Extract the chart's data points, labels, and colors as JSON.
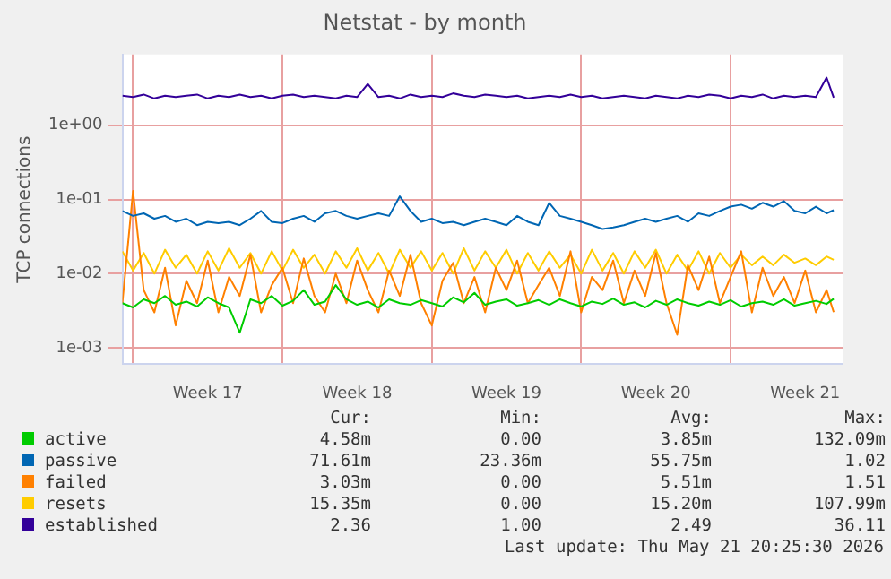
{
  "chart_data": {
    "type": "line",
    "title": "Netstat - by month",
    "ylabel": "TCP connections",
    "log": true,
    "grid": true,
    "legend": "bottom",
    "xlim": [
      "2026-04-18T12:00",
      "2026-05-22T06:00"
    ],
    "xticks": [
      {
        "value": "2026-04-19T00:00",
        "label": null
      },
      {
        "value": "2026-04-22T12:00",
        "label": "Week 17"
      },
      {
        "value": "2026-04-26T00:00",
        "label": null
      },
      {
        "value": "2026-04-29T12:00",
        "label": "Week 18"
      },
      {
        "value": "2026-05-03T00:00",
        "label": null
      },
      {
        "value": "2026-05-06T12:00",
        "label": "Week 19"
      },
      {
        "value": "2026-05-10T00:00",
        "label": null
      },
      {
        "value": "2026-05-13T12:00",
        "label": "Week 20"
      },
      {
        "value": "2026-05-17T00:00",
        "label": null
      },
      {
        "value": "2026-05-20T12:00",
        "label": "Week 21"
      }
    ],
    "ylim": [
      0.0006,
      9
    ],
    "yticks": [
      {
        "value": 0.001,
        "label": "1e-03"
      },
      {
        "value": 0.01,
        "label": "1e-02"
      },
      {
        "value": 0.1,
        "label": "1e-01"
      },
      {
        "value": 1,
        "label": "1e+00"
      }
    ],
    "x": [
      "2026-04-18T12:00",
      "2026-04-19T00:00",
      "2026-04-19T12:00",
      "2026-04-20T00:00",
      "2026-04-20T12:00",
      "2026-04-21T00:00",
      "2026-04-21T12:00",
      "2026-04-22T00:00",
      "2026-04-22T12:00",
      "2026-04-23T00:00",
      "2026-04-23T12:00",
      "2026-04-24T00:00",
      "2026-04-24T12:00",
      "2026-04-25T00:00",
      "2026-04-25T12:00",
      "2026-04-26T00:00",
      "2026-04-26T12:00",
      "2026-04-27T00:00",
      "2026-04-27T12:00",
      "2026-04-28T00:00",
      "2026-04-28T12:00",
      "2026-04-29T00:00",
      "2026-04-29T12:00",
      "2026-04-30T00:00",
      "2026-04-30T12:00",
      "2026-05-01T00:00",
      "2026-05-01T12:00",
      "2026-05-02T00:00",
      "2026-05-02T12:00",
      "2026-05-03T00:00",
      "2026-05-03T12:00",
      "2026-05-04T00:00",
      "2026-05-04T12:00",
      "2026-05-05T00:00",
      "2026-05-05T12:00",
      "2026-05-06T00:00",
      "2026-05-06T12:00",
      "2026-05-07T00:00",
      "2026-05-07T12:00",
      "2026-05-08T00:00",
      "2026-05-08T12:00",
      "2026-05-09T00:00",
      "2026-05-09T12:00",
      "2026-05-10T00:00",
      "2026-05-10T12:00",
      "2026-05-11T00:00",
      "2026-05-11T12:00",
      "2026-05-12T00:00",
      "2026-05-12T12:00",
      "2026-05-13T00:00",
      "2026-05-13T12:00",
      "2026-05-14T00:00",
      "2026-05-14T12:00",
      "2026-05-15T00:00",
      "2026-05-15T12:00",
      "2026-05-16T00:00",
      "2026-05-16T12:00",
      "2026-05-17T00:00",
      "2026-05-17T12:00",
      "2026-05-18T00:00",
      "2026-05-18T12:00",
      "2026-05-19T00:00",
      "2026-05-19T12:00",
      "2026-05-20T00:00",
      "2026-05-20T12:00",
      "2026-05-21T00:00",
      "2026-05-21T12:00",
      "2026-05-21T20:00"
    ],
    "series": [
      {
        "name": "active",
        "color": "#00cc00",
        "values": [
          0.004,
          0.0035,
          0.0045,
          0.004,
          0.005,
          0.0038,
          0.0042,
          0.0036,
          0.0048,
          0.004,
          0.0035,
          0.0016,
          0.0045,
          0.004,
          0.005,
          0.0037,
          0.0043,
          0.006,
          0.0038,
          0.0042,
          0.007,
          0.0045,
          0.0038,
          0.0042,
          0.0035,
          0.0045,
          0.004,
          0.0038,
          0.0044,
          0.004,
          0.0036,
          0.0048,
          0.0041,
          0.0055,
          0.0038,
          0.0042,
          0.0045,
          0.0037,
          0.004,
          0.0044,
          0.0038,
          0.0045,
          0.004,
          0.0036,
          0.0042,
          0.0039,
          0.0046,
          0.0038,
          0.0041,
          0.0035,
          0.0043,
          0.0038,
          0.0045,
          0.004,
          0.0037,
          0.0042,
          0.0038,
          0.0044,
          0.0036,
          0.004,
          0.0042,
          0.0038,
          0.0045,
          0.0037,
          0.004,
          0.0043,
          0.0039,
          0.00458
        ]
      },
      {
        "name": "passive",
        "color": "#0066b3",
        "values": [
          0.07,
          0.06,
          0.065,
          0.055,
          0.06,
          0.05,
          0.055,
          0.045,
          0.05,
          0.048,
          0.05,
          0.045,
          0.055,
          0.07,
          0.05,
          0.048,
          0.055,
          0.06,
          0.05,
          0.065,
          0.07,
          0.06,
          0.055,
          0.06,
          0.065,
          0.06,
          0.11,
          0.07,
          0.05,
          0.055,
          0.048,
          0.05,
          0.045,
          0.05,
          0.055,
          0.05,
          0.045,
          0.06,
          0.05,
          0.045,
          0.09,
          0.06,
          0.055,
          0.05,
          0.045,
          0.04,
          0.042,
          0.045,
          0.05,
          0.055,
          0.05,
          0.055,
          0.06,
          0.05,
          0.065,
          0.06,
          0.07,
          0.08,
          0.085,
          0.075,
          0.09,
          0.08,
          0.095,
          0.07,
          0.065,
          0.08,
          0.065,
          0.0716
        ]
      },
      {
        "name": "failed",
        "color": "#ff8000",
        "values": [
          0.004,
          0.13,
          0.006,
          0.003,
          0.012,
          0.002,
          0.008,
          0.004,
          0.015,
          0.003,
          0.009,
          0.005,
          0.018,
          0.003,
          0.007,
          0.012,
          0.004,
          0.016,
          0.005,
          0.003,
          0.01,
          0.004,
          0.015,
          0.006,
          0.003,
          0.011,
          0.005,
          0.018,
          0.004,
          0.002,
          0.008,
          0.014,
          0.004,
          0.009,
          0.003,
          0.012,
          0.006,
          0.015,
          0.004,
          0.007,
          0.012,
          0.005,
          0.02,
          0.003,
          0.009,
          0.006,
          0.015,
          0.004,
          0.011,
          0.005,
          0.019,
          0.004,
          0.0015,
          0.013,
          0.006,
          0.017,
          0.004,
          0.009,
          0.02,
          0.003,
          0.012,
          0.005,
          0.009,
          0.004,
          0.011,
          0.003,
          0.006,
          0.00303
        ]
      },
      {
        "name": "resets",
        "color": "#ffcc00",
        "values": [
          0.02,
          0.011,
          0.019,
          0.01,
          0.021,
          0.012,
          0.018,
          0.01,
          0.02,
          0.011,
          0.022,
          0.012,
          0.019,
          0.01,
          0.02,
          0.011,
          0.021,
          0.012,
          0.018,
          0.01,
          0.02,
          0.012,
          0.022,
          0.011,
          0.019,
          0.01,
          0.021,
          0.012,
          0.02,
          0.011,
          0.019,
          0.01,
          0.022,
          0.011,
          0.02,
          0.012,
          0.021,
          0.01,
          0.019,
          0.011,
          0.02,
          0.012,
          0.018,
          0.01,
          0.021,
          0.011,
          0.019,
          0.01,
          0.02,
          0.012,
          0.021,
          0.01,
          0.018,
          0.011,
          0.02,
          0.01,
          0.019,
          0.012,
          0.018,
          0.013,
          0.017,
          0.013,
          0.018,
          0.014,
          0.016,
          0.013,
          0.017,
          0.01535
        ]
      },
      {
        "name": "established",
        "color": "#330099",
        "values": [
          2.5,
          2.4,
          2.6,
          2.3,
          2.5,
          2.4,
          2.5,
          2.6,
          2.3,
          2.5,
          2.4,
          2.6,
          2.4,
          2.5,
          2.3,
          2.5,
          2.6,
          2.4,
          2.5,
          2.4,
          2.3,
          2.5,
          2.4,
          3.6,
          2.4,
          2.5,
          2.3,
          2.6,
          2.4,
          2.5,
          2.4,
          2.7,
          2.5,
          2.4,
          2.6,
          2.5,
          2.4,
          2.5,
          2.3,
          2.4,
          2.5,
          2.4,
          2.6,
          2.4,
          2.5,
          2.3,
          2.4,
          2.5,
          2.4,
          2.3,
          2.5,
          2.4,
          2.3,
          2.5,
          2.4,
          2.6,
          2.5,
          2.3,
          2.5,
          2.4,
          2.6,
          2.3,
          2.5,
          2.4,
          2.5,
          2.4,
          4.4,
          2.36
        ]
      }
    ],
    "annotations": [
      "Cur:",
      "Min:",
      "Avg:",
      "Max:",
      "4.58m",
      "0.00",
      "3.85m",
      "132.09m",
      "71.61m",
      "23.36m",
      "55.75m",
      "1.02",
      "3.03m",
      "0.00",
      "5.51m",
      "1.51",
      "15.35m",
      "0.00",
      "15.20m",
      "107.99m",
      "2.36",
      "1.00",
      "2.49",
      "36.11",
      "Last update: Thu May 21 20:25:30 2026"
    ]
  }
}
